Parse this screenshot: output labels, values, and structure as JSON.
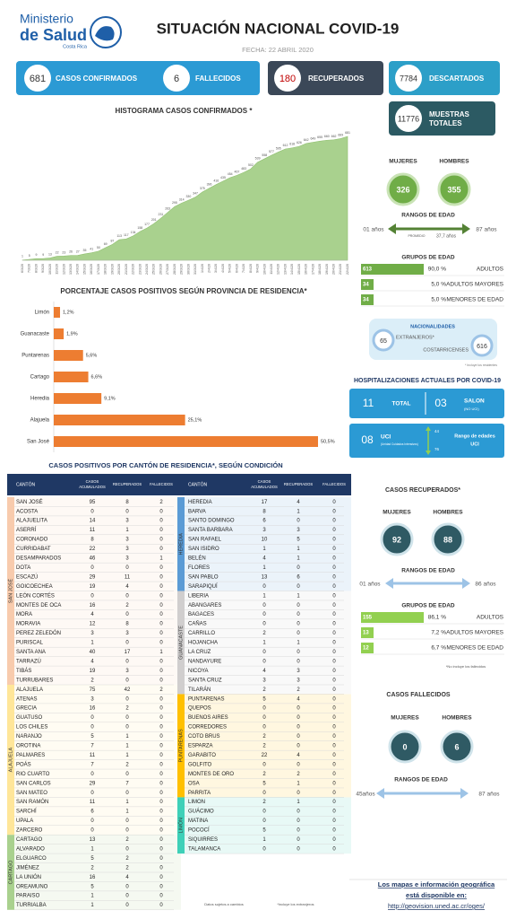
{
  "header": {
    "logo": [
      "Ministerio",
      "de Salud",
      "Costa Rica"
    ],
    "title": "SITUACIÓN NACIONAL COVID-19",
    "date": "FECHA: 22  ABRIL 2020"
  },
  "stats": [
    {
      "value": 681,
      "label": [
        "CASOS CONFIRMADOS"
      ]
    },
    {
      "value": 6,
      "label": [
        "FALLECIDOS"
      ]
    },
    {
      "value": 180,
      "label": [
        "RECUPERADOS"
      ]
    },
    {
      "value": 7784,
      "label": [
        "DESCARTADOS"
      ]
    },
    {
      "value": 11776,
      "label": [
        "MUESTRAS",
        "TOTALES"
      ]
    }
  ],
  "chart_data": [
    {
      "type": "area",
      "title": "HISTOGRAMA CASOS CONFIRMADOS *",
      "color": "#a9d18e",
      "x": [
        "6/3/20",
        "7/3/20",
        "8/3/20",
        "9/3/20",
        "10/3/20",
        "11/3/20",
        "12/3/20",
        "13/3/20",
        "14/3/20",
        "15/3/20",
        "16/3/20",
        "17/3/20",
        "18/3/20",
        "19/3/20",
        "20/3/20",
        "21/3/20",
        "22/3/20",
        "23/3/20",
        "24/3/20",
        "25/3/20",
        "26/3/20",
        "27/3/20",
        "28/3/20",
        "29/3/20",
        "30/3/20",
        "31/3/20",
        "1/4/20",
        "2/4/20",
        "3/4/20",
        "4/4/20",
        "5/4/20",
        "6/4/20",
        "7/4/20",
        "8/4/20",
        "9/4/20",
        "10/4/20",
        "11/4/20",
        "12/4/20",
        "13/4/20",
        "14/4/20",
        "15/4/20",
        "16/4/20",
        "17/4/20",
        "18/4/20",
        "19/4/20",
        "20/4/20",
        "21/4/20",
        "22/4/20"
      ],
      "values": [
        1,
        5,
        9,
        9,
        13,
        22,
        23,
        26,
        27,
        35,
        41,
        50,
        69,
        87,
        113,
        117,
        134,
        158,
        177,
        201,
        231,
        263,
        295,
        314,
        330,
        347,
        375,
        396,
        416,
        435,
        454,
        467,
        483,
        502,
        539,
        558,
        577,
        595,
        612,
        618,
        626,
        642,
        649,
        655,
        660,
        662,
        669,
        681
      ]
    },
    {
      "type": "bar",
      "orientation": "horizontal",
      "title": "PORCENTAJE CASOS POSITIVOS SEGÚN PROVINCIA DE RESIDENCIA*",
      "color": "#ed7d31",
      "categories": [
        "Limón",
        "Guanacaste",
        "Puntarenas",
        "Cartago",
        "Heredia",
        "Alajuela",
        "San José"
      ],
      "values": [
        1.2,
        1.9,
        5.6,
        6.6,
        9.1,
        25.1,
        50.5
      ],
      "value_labels": [
        "1,2%",
        "1,9%",
        "5,6%",
        "6,6%",
        "9,1%",
        "25,1%",
        "50,5%"
      ]
    }
  ],
  "confirmados": {
    "sex": [
      {
        "label": "MUJERES",
        "value": 326
      },
      {
        "label": "HOMBRES",
        "value": 355
      }
    ],
    "age_title": "RANGOS DE EDAD",
    "age_min": "01 años",
    "age_max": "87 años",
    "age_mean_label": "PROMEDIO",
    "age_mean": "37,7 años",
    "groups_title": "GRUPOS DE EDAD",
    "groups": [
      {
        "count": 613,
        "percent": "90,0 %",
        "label": "ADULTOS"
      },
      {
        "count": 34,
        "percent": "5,0 %",
        "label": "ADULTOS MAYORES"
      },
      {
        "count": 34,
        "percent": "5,0 %",
        "label": "MENORES DE EDAD"
      }
    ],
    "nationality": {
      "title": "NACIONALIDADES",
      "items": [
        {
          "value": 65,
          "label": "EXTRANJEROS*"
        },
        {
          "value": 616,
          "label": "COSTARRICENSES"
        }
      ],
      "note": "* Incluye los residentes"
    }
  },
  "hospital": {
    "title": "HOSPITALIZACIONES ACTUALES POR COVID-19",
    "total": 11,
    "total_label": "TOTAL",
    "salon": "03",
    "salon_label": "SALON",
    "salon_note": "(NO UCI)",
    "uci": "08",
    "uci_label": "UCI",
    "uci_note": "(Unidad Cuidados Intensivos)",
    "uci_age_min": 44,
    "uci_age_max": 76,
    "uci_age_label": [
      "Rango de edades",
      "UCI"
    ]
  },
  "recuperados": {
    "title": "CASOS RECUPERADOS*",
    "sex": [
      {
        "label": "MUJERES",
        "value": 92
      },
      {
        "label": "HOMBRES",
        "value": 88
      }
    ],
    "age_title": "RANGOS DE EDAD",
    "age_min": "01 años",
    "age_max": "86 años",
    "groups_title": "GRUPOS DE EDAD",
    "groups": [
      {
        "count": 155,
        "percent": "86,1 %",
        "label": "ADULTOS"
      },
      {
        "count": 13,
        "percent": "7,2 %",
        "label": "ADULTOS MAYORES"
      },
      {
        "count": 12,
        "percent": "6,7 %",
        "label": "MENORES DE EDAD"
      }
    ],
    "note": "*No incluye los fallecidos"
  },
  "fallecidos": {
    "title": "CASOS FALLECIDOS",
    "sex": [
      {
        "label": "MUJERES",
        "value": 0
      },
      {
        "label": "HOMBRES",
        "value": 6
      }
    ],
    "age_title": "RANGOS DE EDAD",
    "age_min": "45años",
    "age_max": "87 años"
  },
  "footer": {
    "text": [
      "Los mapas e información geográfica",
      "está disponible en:"
    ],
    "link": "http://geovision.uned.ac.cr/oges/"
  },
  "table": {
    "title": "CASOS POSITIVOS POR CANTÓN DE RESIDENCIA*, SEGÚN CONDICIÓN",
    "headers": [
      [
        "CANTÓN"
      ],
      [
        "CASOS",
        "ACUMULADOS"
      ],
      [
        "RECUPERADOS"
      ],
      [
        "FALLECIDOS"
      ]
    ],
    "sides": [
      [
        {
          "province": "SAN JOSÉ",
          "color": "#f8cbad",
          "rows": [
            [
              "SAN JOSÉ",
              95,
              8,
              2
            ],
            [
              "ACOSTA",
              0,
              0,
              0
            ],
            [
              "ALAJUELITA",
              14,
              3,
              0
            ],
            [
              "ASERRÍ",
              11,
              1,
              0
            ],
            [
              "CORONADO",
              8,
              3,
              0
            ],
            [
              "CURRIDABAT",
              22,
              3,
              0
            ],
            [
              "DESAMPARADOS",
              46,
              3,
              1
            ],
            [
              "DOTA",
              0,
              0,
              0
            ],
            [
              "ESCAZÚ",
              29,
              11,
              0
            ],
            [
              "GOICOECHEA",
              19,
              4,
              0
            ],
            [
              "LEÓN CORTÉS",
              0,
              0,
              0
            ],
            [
              "MONTES DE OCA",
              16,
              2,
              0
            ],
            [
              "MORA",
              4,
              0,
              0
            ],
            [
              "MORAVIA",
              12,
              8,
              0
            ],
            [
              "PEREZ ZELEDÓN",
              3,
              3,
              0
            ],
            [
              "PURISCAL",
              1,
              0,
              0
            ],
            [
              "SANTA ANA",
              40,
              17,
              1
            ],
            [
              "TARRAZÚ",
              4,
              0,
              0
            ],
            [
              "TIBÁS",
              19,
              3,
              0
            ],
            [
              "TURRUBARES",
              2,
              0,
              0
            ]
          ]
        },
        {
          "province": "ALAJUELA",
          "color": "#ffe699",
          "rows": [
            [
              "ALAJUELA",
              75,
              42,
              2
            ],
            [
              "ATENAS",
              3,
              0,
              0
            ],
            [
              "GRECIA",
              16,
              2,
              0
            ],
            [
              "GUATUSO",
              0,
              0,
              0
            ],
            [
              "LOS CHILES",
              0,
              0,
              0
            ],
            [
              "NARANJO",
              5,
              1,
              0
            ],
            [
              "OROTINA",
              7,
              1,
              0
            ],
            [
              "PALMARES",
              11,
              1,
              0
            ],
            [
              "POÁS",
              7,
              2,
              0
            ],
            [
              "RIO CUARTO",
              0,
              0,
              0
            ],
            [
              "SAN CARLOS",
              29,
              7,
              0
            ],
            [
              "SAN MATEO",
              0,
              0,
              0
            ],
            [
              "SAN RAMÓN",
              11,
              1,
              0
            ],
            [
              "SARCHÍ",
              6,
              1,
              0
            ],
            [
              "UPALA",
              0,
              0,
              0
            ],
            [
              "ZARCERO",
              0,
              0,
              0
            ]
          ]
        },
        {
          "province": "CARTAGO",
          "color": "#a9d18e",
          "rows": [
            [
              "CARTAGO",
              13,
              2,
              0
            ],
            [
              "ALVARADO",
              1,
              0,
              0
            ],
            [
              "ELGUARCO",
              5,
              2,
              0
            ],
            [
              "JIMÉNEZ",
              2,
              2,
              0
            ],
            [
              "LA UNIÓN",
              16,
              4,
              0
            ],
            [
              "OREAMUNO",
              5,
              0,
              0
            ],
            [
              "PARAISO",
              1,
              0,
              0
            ],
            [
              "TURRIALBA",
              1,
              0,
              0
            ]
          ]
        }
      ],
      [
        {
          "province": "HEREDIA",
          "color": "#5b9bd5",
          "rows": [
            [
              "HEREDIA",
              17,
              4,
              0
            ],
            [
              "BARVA",
              8,
              1,
              0
            ],
            [
              "SANTO DOMINGO",
              6,
              0,
              0
            ],
            [
              "SANTA BARBARA",
              3,
              3,
              0
            ],
            [
              "SAN RAFAEL",
              10,
              5,
              0
            ],
            [
              "SAN ISIDRO",
              1,
              1,
              0
            ],
            [
              "BELÉN",
              4,
              1,
              0
            ],
            [
              "FLORES",
              1,
              0,
              0
            ],
            [
              "SAN PABLO",
              13,
              6,
              0
            ],
            [
              "SARAPIQUÍ",
              0,
              0,
              0
            ]
          ]
        },
        {
          "province": "GUANACASTE",
          "color": "#d0cece",
          "rows": [
            [
              "LIBERIA",
              1,
              1,
              0
            ],
            [
              "ABANGARES",
              0,
              0,
              0
            ],
            [
              "BAGACES",
              0,
              0,
              0
            ],
            [
              "CAÑAS",
              0,
              0,
              0
            ],
            [
              "CARRILLO",
              2,
              0,
              0
            ],
            [
              "HOJANCHA",
              1,
              1,
              0
            ],
            [
              "LA CRUZ",
              0,
              0,
              0
            ],
            [
              "NANDAYURE",
              0,
              0,
              0
            ],
            [
              "NICOYA",
              4,
              3,
              0
            ],
            [
              "SANTA CRUZ",
              3,
              3,
              0
            ],
            [
              "TILARÁN",
              2,
              2,
              0
            ]
          ]
        },
        {
          "province": "PUNTARENAS",
          "color": "#ffc000",
          "rows": [
            [
              "PUNTARENAS",
              5,
              4,
              0
            ],
            [
              "QUEPOS",
              0,
              0,
              0
            ],
            [
              "BUENOS AIRES",
              0,
              0,
              0
            ],
            [
              "CORREDORES",
              0,
              0,
              0
            ],
            [
              "COTO BRUS",
              2,
              0,
              0
            ],
            [
              "ESPARZA",
              2,
              0,
              0
            ],
            [
              "GARABITO",
              22,
              4,
              0
            ],
            [
              "GOLFITO",
              0,
              0,
              0
            ],
            [
              "MONTES DE ORO",
              2,
              2,
              0
            ],
            [
              "OSA",
              5,
              1,
              0
            ],
            [
              "PARRITA",
              0,
              0,
              0
            ]
          ]
        },
        {
          "province": "LIMÓN",
          "color": "#3fd0b8",
          "rows": [
            [
              "LIMON",
              2,
              1,
              0
            ],
            [
              "GUÁCIMO",
              0,
              0,
              0
            ],
            [
              "MATINA",
              0,
              0,
              0
            ],
            [
              "POCOCÍ",
              5,
              0,
              0
            ],
            [
              "SIQUIRRES",
              1,
              0,
              0
            ],
            [
              "TALAMANCA",
              0,
              0,
              0
            ]
          ]
        }
      ]
    ],
    "notes": [
      "Datos sujetos a cambios",
      "*incluye los extranjeros"
    ]
  }
}
